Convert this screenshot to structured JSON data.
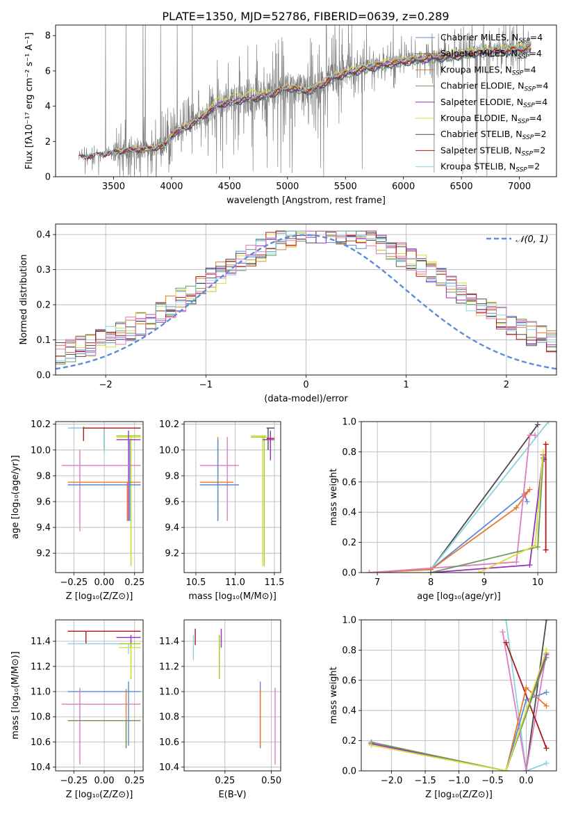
{
  "figure": {
    "title": "PLATE=1350, MJD=52786, FIBERID=0639, z=0.289"
  },
  "colors": {
    "chabrier_miles": "#5b8bd9",
    "salpeter_miles": "#5b5b5b",
    "kroupa_miles": "#e8792a",
    "chabrier_elodie": "#6b9a5e",
    "salpeter_elodie": "#9a2fbf",
    "kroupa_elodie": "#d9dd3a",
    "chabrier_stelib": "#4a4a4a",
    "salpeter_stelib": "#b01818",
    "kroupa_stelib": "#86d4e0",
    "pink": "#e07bbf",
    "lime": "#9ad21a",
    "data": "#808080",
    "normal": "#5b8bd9"
  },
  "chart_data": [
    {
      "id": "spectrum",
      "type": "line",
      "title": "PLATE=1350, MJD=52786, FIBERID=0639, z=0.289",
      "xlabel": "wavelength [Angstrom, rest frame]",
      "ylabel": "Flux [fλ10⁻¹⁷ erg cm⁻² s⁻¹ A⁻¹]",
      "xlim": [
        3000,
        7320
      ],
      "ylim": [
        0,
        8.6
      ],
      "xticks": [
        3500,
        4000,
        4500,
        5000,
        5500,
        6000,
        6500,
        7000
      ],
      "yticks": [
        0,
        2,
        4,
        6,
        8
      ],
      "legend_position": "top-right",
      "legend": [
        "Chabrier MILES, N_SSP=4",
        "Salpeter MILES, N_SSP=4",
        "Kroupa MILES, N_SSP=4",
        "Chabrier ELODIE, N_SSP=4",
        "Salpeter ELODIE, N_SSP=4",
        "Kroupa ELODIE, N_SSP=4",
        "Chabrier STELIB, N_SSP=2",
        "Salpeter STELIB, N_SSP=2",
        "Kroupa STELIB, N_SSP=2"
      ],
      "continuum": {
        "x": [
          3200,
          3400,
          3600,
          3800,
          3950,
          4000,
          4200,
          4400,
          4600,
          4800,
          5000,
          5200,
          5400,
          5600,
          5800,
          6000,
          6200,
          6400,
          6600,
          6800,
          7000,
          7100
        ],
        "y": [
          1.1,
          1.3,
          1.5,
          1.6,
          1.8,
          2.4,
          3.1,
          4.1,
          4.4,
          4.6,
          5.1,
          4.9,
          5.7,
          6.1,
          6.4,
          6.6,
          6.8,
          6.9,
          7.1,
          7.2,
          7.3,
          7.4
        ]
      }
    },
    {
      "id": "residuals",
      "type": "bar",
      "xlabel": "(data-model)/error",
      "ylabel": "Normed distribution",
      "xlim": [
        -2.5,
        2.5
      ],
      "ylim": [
        0,
        0.43
      ],
      "xticks": [
        -2,
        -1,
        0,
        1,
        2
      ],
      "yticks": [
        0.0,
        0.1,
        0.2,
        0.3,
        0.4
      ],
      "legend_position": "top-right",
      "legend": [
        "𝒩(0, 1)"
      ],
      "bin_width": 0.1
    },
    {
      "id": "age_vs_Z",
      "type": "scatter",
      "xlabel": "Z [log₁₀(Z/Z⊙)]",
      "ylabel": "age  [log₁₀(age/yr)]",
      "xlim": [
        -0.4,
        0.32
      ],
      "ylim": [
        9.05,
        10.22
      ],
      "xticks": [
        -0.25,
        0.0,
        0.25
      ],
      "xtick_labels": [
        "−0.25",
        "0.00",
        "0.25"
      ],
      "yticks": [
        9.2,
        9.4,
        9.6,
        9.8,
        10.0,
        10.2
      ],
      "points": [
        {
          "x": 0.0,
          "y": 10.17,
          "xlo": -0.28,
          "xhi": 0.3,
          "ylo": 10.0,
          "yhi": 10.17,
          "color": "#4a4a4a"
        },
        {
          "x": 0.0,
          "y": 10.17,
          "xlo": -0.3,
          "xhi": 0.3,
          "ylo": 9.98,
          "yhi": 10.18,
          "color": "#86d4e0"
        },
        {
          "x": -0.17,
          "y": 10.17,
          "xlo": -0.17,
          "xhi": 0.3,
          "ylo": 10.07,
          "yhi": 10.18,
          "color": "#b01818"
        },
        {
          "x": 0.22,
          "y": 10.11,
          "xlo": 0.1,
          "xhi": 0.3,
          "ylo": 9.1,
          "yhi": 10.11,
          "color": "#9ad21a"
        },
        {
          "x": 0.22,
          "y": 10.1,
          "xlo": 0.1,
          "xhi": 0.3,
          "ylo": 9.1,
          "yhi": 10.1,
          "color": "#d9dd3a"
        },
        {
          "x": 0.2,
          "y": 10.08,
          "xlo": 0.1,
          "xhi": 0.3,
          "ylo": 9.45,
          "yhi": 10.15,
          "color": "#9a2fbf"
        },
        {
          "x": -0.2,
          "y": 9.88,
          "xlo": -0.35,
          "xhi": 0.3,
          "ylo": 9.37,
          "yhi": 10.0,
          "color": "#e07bbf"
        },
        {
          "x": 0.19,
          "y": 9.75,
          "xlo": -0.3,
          "xhi": 0.3,
          "ylo": 9.45,
          "yhi": 9.75,
          "color": "#e8792a"
        },
        {
          "x": 0.21,
          "y": 9.73,
          "xlo": -0.3,
          "xhi": 0.3,
          "ylo": 9.45,
          "yhi": 10.08,
          "color": "#5b8bd9"
        }
      ]
    },
    {
      "id": "age_vs_mass",
      "type": "scatter",
      "xlabel": "mass [log₁₀(M/M⊙)]",
      "xlim": [
        10.35,
        11.58
      ],
      "ylim": [
        9.05,
        10.22
      ],
      "xticks": [
        10.5,
        11.0,
        11.5
      ],
      "yticks": [
        9.2,
        9.4,
        9.6,
        9.8,
        10.0,
        10.2
      ],
      "points": [
        {
          "x": 11.42,
          "y": 10.17,
          "xlo": 11.4,
          "xhi": 11.5,
          "ylo": 10.0,
          "yhi": 10.17,
          "color": "#4a4a4a"
        },
        {
          "x": 11.45,
          "y": 10.09,
          "xlo": 11.4,
          "xhi": 11.5,
          "ylo": 10.05,
          "yhi": 10.12,
          "color": "#b01818"
        },
        {
          "x": 11.35,
          "y": 10.11,
          "xlo": 11.2,
          "xhi": 11.4,
          "ylo": 9.1,
          "yhi": 10.11,
          "color": "#d9dd3a"
        },
        {
          "x": 11.37,
          "y": 10.1,
          "xlo": 11.2,
          "xhi": 11.4,
          "ylo": 9.1,
          "yhi": 10.1,
          "color": "#9ad21a"
        },
        {
          "x": 11.45,
          "y": 10.08,
          "xlo": 11.35,
          "xhi": 11.5,
          "ylo": 9.92,
          "yhi": 10.15,
          "color": "#9a2fbf"
        },
        {
          "x": 10.9,
          "y": 9.88,
          "xlo": 10.55,
          "xhi": 11.05,
          "ylo": 9.45,
          "yhi": 10.1,
          "color": "#e07bbf"
        },
        {
          "x": 10.78,
          "y": 9.75,
          "xlo": 10.55,
          "xhi": 10.98,
          "ylo": 9.45,
          "yhi": 10.1,
          "color": "#e8792a"
        },
        {
          "x": 10.78,
          "y": 9.73,
          "xlo": 10.55,
          "xhi": 11.05,
          "ylo": 9.45,
          "yhi": 10.08,
          "color": "#5b8bd9"
        }
      ]
    },
    {
      "id": "massweight_vs_age",
      "type": "line",
      "xlabel": "age  [log₁₀(age/yr)]",
      "ylabel": "mass weight",
      "xlim": [
        6.7,
        10.35
      ],
      "ylim": [
        0,
        1.0
      ],
      "xticks": [
        7,
        8,
        9,
        10
      ],
      "yticks": [
        0.0,
        0.2,
        0.4,
        0.6,
        0.8,
        1.0
      ],
      "series": [
        {
          "color": "#4a4a4a",
          "x": [
            8.0,
            10.0
          ],
          "y": [
            0.02,
            0.98
          ]
        },
        {
          "color": "#86d4e0",
          "x": [
            8.0,
            10.2
          ],
          "y": [
            0.02,
            1.0
          ]
        },
        {
          "color": "#5b8bd9",
          "x": [
            8.0,
            9.75,
            9.8
          ],
          "y": [
            0.02,
            0.52,
            0.47
          ]
        },
        {
          "color": "#e8792a",
          "x": [
            6.85,
            8.0,
            9.6,
            9.85,
            9.75
          ],
          "y": [
            0.0,
            0.02,
            0.43,
            0.55,
            0.52
          ]
        },
        {
          "color": "#e07bbf",
          "x": [
            6.85,
            9.6,
            9.85,
            9.95
          ],
          "y": [
            0.0,
            0.07,
            0.91,
            0.91
          ]
        },
        {
          "color": "#9a2fbf",
          "x": [
            8.0,
            9.85,
            10.1,
            10.12
          ],
          "y": [
            0.0,
            0.05,
            0.78,
            0.75
          ]
        },
        {
          "color": "#6b9a5e",
          "x": [
            8.0,
            10.0,
            10.1
          ],
          "y": [
            0.0,
            0.17,
            0.76
          ]
        },
        {
          "color": "#d9dd3a",
          "x": [
            8.9,
            9.95,
            10.1
          ],
          "y": [
            0.0,
            0.18,
            0.8
          ]
        },
        {
          "color": "#b01818",
          "x": [
            10.15,
            10.15
          ],
          "y": [
            0.15,
            0.85
          ]
        }
      ]
    },
    {
      "id": "mass_vs_Z",
      "type": "scatter",
      "xlabel": "Z [log₁₀(Z/Z⊙)]",
      "ylabel": "mass [log₁₀(M/M⊙)]",
      "xlim": [
        -0.4,
        0.32
      ],
      "ylim": [
        10.37,
        11.57
      ],
      "xticks": [
        -0.25,
        0.0,
        0.25
      ],
      "xtick_labels": [
        "−0.25",
        "0.00",
        "0.25"
      ],
      "yticks": [
        10.4,
        10.6,
        10.8,
        11.0,
        11.2,
        11.4
      ],
      "points": [
        {
          "x": -0.15,
          "y": 11.48,
          "xlo": -0.3,
          "xhi": 0.3,
          "ylo": 11.38,
          "yhi": 11.48,
          "color": "#b01818"
        },
        {
          "x": 0.22,
          "y": 11.43,
          "xlo": 0.1,
          "xhi": 0.3,
          "ylo": 11.35,
          "yhi": 11.45,
          "color": "#9a2fbf"
        },
        {
          "x": 0.2,
          "y": 11.38,
          "xlo": -0.3,
          "xhi": 0.3,
          "ylo": 11.3,
          "yhi": 11.38,
          "color": "#86d4e0"
        },
        {
          "x": 0.22,
          "y": 11.38,
          "xlo": 0.12,
          "xhi": 0.3,
          "ylo": 11.1,
          "yhi": 11.38,
          "color": "#9ad21a"
        },
        {
          "x": 0.22,
          "y": 11.35,
          "xlo": 0.12,
          "xhi": 0.3,
          "ylo": 11.12,
          "yhi": 11.35,
          "color": "#d9dd3a"
        },
        {
          "x": 0.2,
          "y": 11.0,
          "xlo": -0.3,
          "xhi": 0.3,
          "ylo": 10.57,
          "yhi": 11.08,
          "color": "#5b8bd9"
        },
        {
          "x": -0.2,
          "y": 10.9,
          "xlo": -0.35,
          "xhi": 0.3,
          "ylo": 10.42,
          "yhi": 11.03,
          "color": "#e07bbf"
        },
        {
          "x": 0.18,
          "y": 10.77,
          "xlo": -0.3,
          "xhi": 0.3,
          "ylo": 10.55,
          "yhi": 11.02,
          "color": "#e8792a"
        },
        {
          "x": 0.18,
          "y": 10.77,
          "xlo": -0.3,
          "xhi": 0.3,
          "ylo": 10.55,
          "yhi": 10.77,
          "color": "#6b9a5e"
        }
      ]
    },
    {
      "id": "mass_vs_ebv",
      "type": "scatter",
      "xlabel": "E(B-V)",
      "xlim": [
        0.03,
        0.55
      ],
      "ylim": [
        10.37,
        11.57
      ],
      "xticks": [
        0.25,
        0.5
      ],
      "xtick_labels": [
        "0.25",
        "0.50"
      ],
      "yticks": [
        10.4,
        10.6,
        10.8,
        11.0,
        11.2,
        11.4
      ],
      "points": [
        {
          "x": 0.09,
          "y": 11.43,
          "xlo": 0.09,
          "xhi": 0.09,
          "ylo": 11.37,
          "yhi": 11.5,
          "color": "#b01818"
        },
        {
          "x": 0.08,
          "y": 11.38,
          "xlo": 0.08,
          "xhi": 0.08,
          "ylo": 11.25,
          "yhi": 11.45,
          "color": "#86d4e0"
        },
        {
          "x": 0.23,
          "y": 11.43,
          "xlo": 0.23,
          "xhi": 0.23,
          "ylo": 11.35,
          "yhi": 11.5,
          "color": "#9a2fbf"
        },
        {
          "x": 0.22,
          "y": 11.3,
          "xlo": 0.22,
          "xhi": 0.22,
          "ylo": 11.1,
          "yhi": 11.45,
          "color": "#9ad21a"
        },
        {
          "x": 0.44,
          "y": 10.9,
          "xlo": 0.44,
          "xhi": 0.44,
          "ylo": 10.55,
          "yhi": 11.08,
          "color": "#5b8bd9"
        },
        {
          "x": 0.44,
          "y": 10.8,
          "xlo": 0.44,
          "xhi": 0.44,
          "ylo": 10.55,
          "yhi": 11.02,
          "color": "#e8792a"
        },
        {
          "x": 0.52,
          "y": 10.8,
          "xlo": 0.52,
          "xhi": 0.52,
          "ylo": 10.42,
          "yhi": 11.03,
          "color": "#e07bbf"
        }
      ]
    },
    {
      "id": "massweight_vs_Z",
      "type": "line",
      "xlabel": "Z [log₁₀(Z/Z⊙)]",
      "ylabel": "mass weight",
      "xlim": [
        -2.45,
        0.45
      ],
      "ylim": [
        0,
        1.0
      ],
      "xticks": [
        -2.0,
        -1.5,
        -1.0,
        -0.5,
        0.0
      ],
      "xtick_labels": [
        "−2.0",
        "−1.5",
        "−1.0",
        "−0.5",
        "0.0"
      ],
      "yticks": [
        0.0,
        0.2,
        0.4,
        0.6,
        0.8,
        1.0
      ],
      "series": [
        {
          "color": "#4a4a4a",
          "x": [
            0.0,
            0.3
          ],
          "y": [
            0.0,
            1.0
          ]
        },
        {
          "color": "#86d4e0",
          "x": [
            -0.3,
            0.0,
            0.3
          ],
          "y": [
            1.0,
            0.0,
            0.05
          ]
        },
        {
          "color": "#e07bbf",
          "x": [
            -0.35,
            0.0,
            0.3
          ],
          "y": [
            0.92,
            0.0,
            0.78
          ]
        },
        {
          "color": "#b01818",
          "x": [
            -0.3,
            0.3
          ],
          "y": [
            0.85,
            0.15
          ]
        },
        {
          "color": "#e8792a",
          "x": [
            -0.3,
            0.0,
            0.3
          ],
          "y": [
            0.0,
            0.55,
            0.43
          ]
        },
        {
          "color": "#5b8bd9",
          "x": [
            -0.3,
            0.0,
            0.3
          ],
          "y": [
            0.0,
            0.47,
            0.52
          ]
        },
        {
          "color": "#9a2fbf",
          "x": [
            -2.3,
            -0.3,
            0.3
          ],
          "y": [
            0.18,
            0.0,
            0.77
          ]
        },
        {
          "color": "#6b9a5e",
          "x": [
            -2.3,
            -0.3,
            0.3
          ],
          "y": [
            0.19,
            0.0,
            0.75
          ]
        },
        {
          "color": "#d9dd3a",
          "x": [
            -2.3,
            -0.3,
            0.3
          ],
          "y": [
            0.17,
            0.0,
            0.8
          ]
        }
      ]
    }
  ]
}
